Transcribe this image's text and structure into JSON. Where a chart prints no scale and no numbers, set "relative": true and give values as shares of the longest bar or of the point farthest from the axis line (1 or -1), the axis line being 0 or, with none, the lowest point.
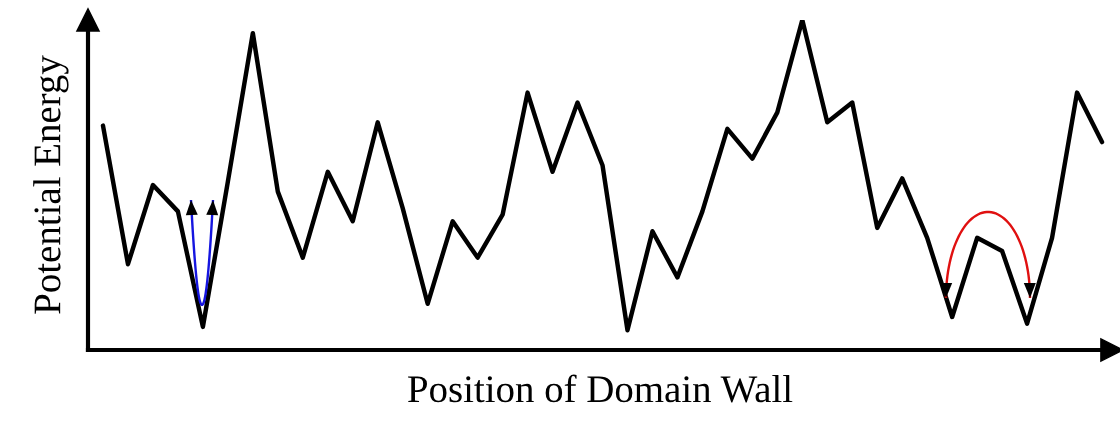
{
  "chart_data": {
    "type": "line",
    "relative": true,
    "xlabel": "Position of Domain Wall",
    "ylabel": "Potential Energy",
    "categories": [
      null,
      null,
      null,
      null,
      null,
      null,
      null,
      null,
      null,
      null,
      null,
      null,
      null,
      null,
      null,
      null,
      null,
      null,
      null,
      null,
      null,
      null,
      null,
      null,
      null,
      null,
      null,
      null,
      null,
      null,
      null,
      null,
      null,
      null,
      null,
      null,
      null,
      null,
      null,
      null,
      null
    ],
    "series": [
      {
        "color": "#000000",
        "values": [
          0.68,
          0.26,
          0.5,
          0.42,
          0.07,
          0.51,
          0.96,
          0.48,
          0.28,
          0.54,
          0.39,
          0.69,
          0.43,
          0.14,
          0.39,
          0.28,
          0.41,
          0.78,
          0.54,
          0.75,
          0.56,
          0.06,
          0.36,
          0.22,
          0.42,
          0.67,
          0.58,
          0.72,
          1.0,
          0.69,
          0.75,
          0.37,
          0.52,
          0.34,
          0.1,
          0.34,
          0.3,
          0.08,
          0.34,
          0.78,
          0.63
        ]
      }
    ],
    "grid": false,
    "legend": false,
    "marker": "none",
    "line_style": "solid"
  }
}
